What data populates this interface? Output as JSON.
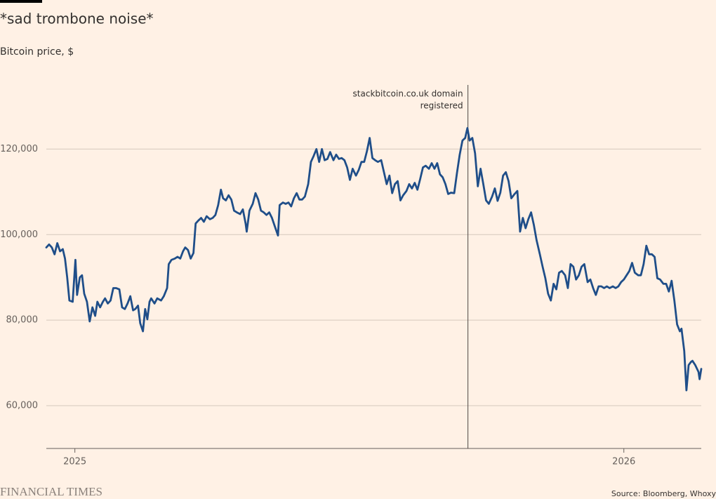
{
  "chart_data": {
    "type": "line",
    "title": "*sad trombone noise*",
    "subtitle": "Bitcoin price, $",
    "source": "Source: Bloomberg, Whoxy",
    "brand": "FINANCIAL TIMES",
    "color": "#1f4e89",
    "grid": true,
    "xlim": [
      2024.948,
      2026.141
    ],
    "xticks": [
      2025,
      2026
    ],
    "ylim": [
      50000,
      135000
    ],
    "yticks": [
      {
        "value": 60000,
        "label": "60,000"
      },
      {
        "value": 80000,
        "label": "80,000"
      },
      {
        "value": 100000,
        "label": "100,000"
      },
      {
        "value": 120000,
        "label": "120,000"
      }
    ],
    "annotations": [
      {
        "x": 2025.716,
        "lines": [
          "stackbitcoin.co.uk domain",
          "registered"
        ]
      }
    ],
    "x": [
      2024.948,
      2024.953,
      2024.958,
      2024.963,
      2024.968,
      2024.973,
      2024.978,
      2024.982,
      2024.986,
      2024.99,
      2024.996,
      2025.001,
      2025.004,
      2025.009,
      2025.013,
      2025.017,
      2025.022,
      2025.027,
      2025.032,
      2025.037,
      2025.041,
      2025.046,
      2025.051,
      2025.055,
      2025.06,
      2025.065,
      2025.07,
      2025.075,
      2025.081,
      2025.086,
      2025.091,
      2025.096,
      2025.101,
      2025.106,
      2025.11,
      2025.115,
      2025.119,
      2025.124,
      2025.128,
      2025.132,
      2025.136,
      2025.139,
      2025.145,
      2025.15,
      2025.157,
      2025.162,
      2025.168,
      2025.171,
      2025.176,
      2025.182,
      2025.187,
      2025.192,
      2025.197,
      2025.201,
      2025.206,
      2025.211,
      2025.216,
      2025.22,
      2025.225,
      2025.23,
      2025.235,
      2025.24,
      2025.246,
      2025.251,
      2025.256,
      2025.261,
      2025.266,
      2025.27,
      2025.275,
      2025.28,
      2025.285,
      2025.29,
      2025.295,
      2025.301,
      2025.306,
      2025.311,
      2025.313,
      2025.318,
      2025.324,
      2025.329,
      2025.334,
      2025.339,
      2025.344,
      2025.349,
      2025.354,
      2025.359,
      2025.364,
      2025.37,
      2025.373,
      2025.379,
      2025.384,
      2025.389,
      2025.394,
      2025.399,
      2025.404,
      2025.409,
      2025.414,
      2025.419,
      2025.425,
      2025.43,
      2025.435,
      2025.44,
      2025.445,
      2025.45,
      2025.455,
      2025.46,
      2025.465,
      2025.471,
      2025.476,
      2025.481,
      2025.486,
      2025.491,
      2025.496,
      2025.501,
      2025.506,
      2025.512,
      2025.517,
      2025.522,
      2025.527,
      2025.532,
      2025.537,
      2025.542,
      2025.547,
      2025.552,
      2025.558,
      2025.563,
      2025.568,
      2025.573,
      2025.578,
      2025.583,
      2025.588,
      2025.593,
      2025.598,
      2025.604,
      2025.609,
      2025.614,
      2025.619,
      2025.624,
      2025.629,
      2025.634,
      2025.639,
      2025.645,
      2025.65,
      2025.655,
      2025.66,
      2025.665,
      2025.67,
      2025.675,
      2025.68,
      2025.685,
      2025.691,
      2025.696,
      2025.701,
      2025.706,
      2025.711,
      2025.715,
      2025.719,
      2025.724,
      2025.729,
      2025.734,
      2025.739,
      2025.744,
      2025.749,
      2025.754,
      2025.76,
      2025.765,
      2025.77,
      2025.775,
      2025.78,
      2025.785,
      2025.79,
      2025.795,
      2025.801,
      2025.806,
      2025.811,
      2025.816,
      2025.821,
      2025.826,
      2025.831,
      2025.836,
      2025.841,
      2025.847,
      2025.852,
      2025.857,
      2025.862,
      2025.867,
      2025.872,
      2025.877,
      2025.882,
      2025.887,
      2025.893,
      2025.898,
      2025.903,
      2025.908,
      2025.913,
      2025.918,
      2025.923,
      2025.928,
      2025.934,
      2025.939,
      2025.944,
      2025.949,
      2025.954,
      2025.959,
      2025.964,
      2025.969,
      2025.974,
      2025.98,
      2025.985,
      2025.99,
      2025.995,
      2026.0,
      2026.005,
      2026.01,
      2026.015,
      2026.02,
      2026.026,
      2026.031,
      2026.036,
      2026.041,
      2026.046,
      2026.051,
      2026.056,
      2026.061,
      2026.066,
      2026.072,
      2026.077,
      2026.082,
      2026.087,
      2026.092,
      2026.097,
      2026.102,
      2026.105,
      2026.11,
      2026.114,
      2026.118,
      2026.122,
      2026.125,
      2026.13,
      2026.136,
      2026.138,
      2026.141
    ],
    "values": [
      97000,
      97700,
      97000,
      95400,
      98000,
      96100,
      96600,
      94400,
      90000,
      84600,
      84300,
      94100,
      85900,
      90000,
      90500,
      86200,
      84300,
      79700,
      83000,
      81000,
      84300,
      83000,
      84300,
      85100,
      83900,
      84600,
      87500,
      87500,
      87200,
      83000,
      82600,
      83900,
      85600,
      82300,
      82600,
      83400,
      79300,
      77400,
      82600,
      80200,
      84300,
      85100,
      83900,
      85100,
      84600,
      85600,
      87500,
      93100,
      94100,
      94400,
      94800,
      94400,
      96100,
      97000,
      96400,
      94400,
      95700,
      102600,
      103300,
      103900,
      103000,
      104300,
      103600,
      103900,
      104600,
      106900,
      110500,
      108500,
      108000,
      109200,
      108200,
      105600,
      105200,
      104800,
      105900,
      102600,
      100700,
      105600,
      107200,
      109700,
      108200,
      105600,
      105200,
      104600,
      105200,
      103900,
      102000,
      99800,
      106900,
      107500,
      107200,
      107500,
      106600,
      108500,
      109700,
      108200,
      108200,
      108900,
      111800,
      117000,
      118400,
      120000,
      117000,
      120000,
      117400,
      117700,
      119300,
      117400,
      118700,
      117700,
      117900,
      117400,
      115700,
      112800,
      115400,
      113800,
      115100,
      117000,
      117000,
      119500,
      122600,
      117900,
      117400,
      117000,
      117400,
      114600,
      111800,
      113800,
      109700,
      111800,
      112500,
      108000,
      109200,
      110200,
      111800,
      110800,
      112100,
      110500,
      113000,
      115700,
      116100,
      115400,
      116700,
      115400,
      116700,
      114100,
      113400,
      111800,
      109500,
      109800,
      109700,
      114400,
      118700,
      122000,
      122600,
      124900,
      122000,
      122600,
      119000,
      111300,
      115400,
      111800,
      108000,
      107200,
      108900,
      110800,
      107900,
      109800,
      113800,
      114600,
      112500,
      108500,
      109500,
      110200,
      100700,
      103900,
      101500,
      103600,
      105200,
      102300,
      98700,
      95400,
      92500,
      89800,
      86200,
      84600,
      88500,
      87200,
      91100,
      91500,
      90500,
      87500,
      93100,
      92500,
      89500,
      90500,
      92500,
      93100,
      88900,
      89500,
      87500,
      85900,
      87900,
      87900,
      87500,
      87900,
      87500,
      87900,
      87500,
      87900,
      88900,
      89500,
      90500,
      91500,
      93400,
      91100,
      90500,
      90500,
      93100,
      97400,
      95400,
      95400,
      94800,
      89800,
      89500,
      88500,
      88500,
      86700,
      89200,
      84600,
      79000,
      77400,
      78000,
      72800,
      63600,
      69500,
      70200,
      70500,
      69500,
      67900,
      66200,
      68600
    ]
  }
}
